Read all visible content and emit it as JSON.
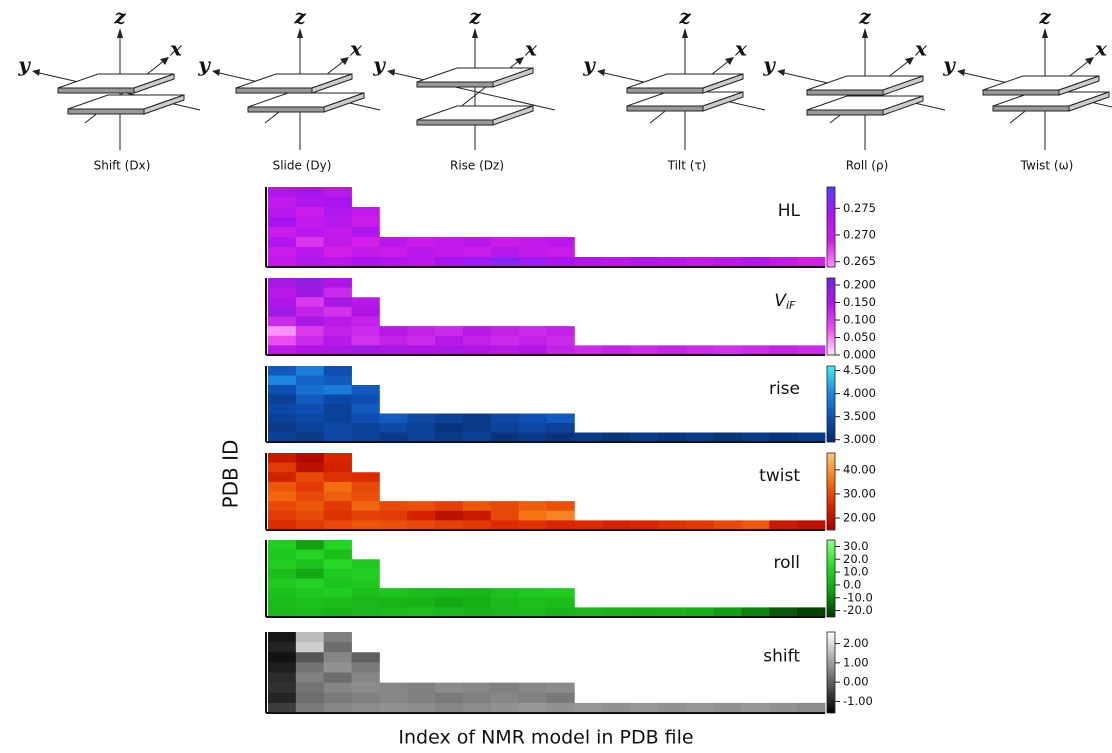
{
  "diagrams": [
    {
      "label": "Shift (Dx)"
    },
    {
      "label": "Slide (Dy)"
    },
    {
      "label": "Rise (Dz)"
    },
    {
      "label": "Tilt (τ)"
    },
    {
      "label": "Roll (ρ)"
    },
    {
      "label": "Twist (ω)"
    }
  ],
  "axis_letters": [
    "z",
    "y",
    "x"
  ],
  "figure": {
    "ylabel": "PDB ID",
    "xlabel": "Index of NMR model in PDB file"
  },
  "chart_data": [
    {
      "type": "heatmap",
      "label": "HL",
      "colormap": [
        "#ff8cff",
        "#d21ee6",
        "#a814f0",
        "#5a3cff"
      ],
      "clim": [
        0.264,
        0.279
      ],
      "cticks": [
        0.265,
        {
          "value": 0.27,
          "label": "0.270"
        },
        0.275
      ],
      "rows": [
        [
          0.273,
          0.274,
          0.272
        ],
        [
          0.271,
          0.273,
          0.274
        ],
        [
          0.272,
          0.27,
          0.273,
          0.271
        ],
        [
          0.274,
          0.271,
          0.272,
          0.27
        ],
        [
          0.27,
          0.272,
          0.271,
          0.273
        ],
        [
          0.273,
          0.268,
          0.271,
          0.269,
          0.272,
          0.27,
          0.271,
          0.272,
          0.27,
          0.271,
          0.272
        ],
        [
          0.27,
          0.272,
          0.269,
          0.271,
          0.27,
          0.272,
          0.271,
          0.27,
          0.272,
          0.271,
          0.27
        ],
        [
          0.271,
          0.273,
          0.272,
          0.274,
          0.273,
          0.272,
          0.274,
          0.275,
          0.276,
          0.275,
          0.274,
          0.273,
          0.272,
          0.273,
          0.272,
          0.271,
          0.272,
          0.273,
          0.271,
          0.269
        ]
      ]
    },
    {
      "type": "heatmap",
      "label": "V",
      "label_sub": "iF",
      "colormap": [
        "#ffe6ff",
        "#f050f0",
        "#b414e6",
        "#6e28dc"
      ],
      "clim": [
        0,
        0.22
      ],
      "cticks": [
        {
          "value": 0,
          "label": "0.000"
        },
        {
          "value": 0.05,
          "label": "0.050"
        },
        {
          "value": 0.1,
          "label": "0.100"
        },
        {
          "value": 0.15,
          "label": "0.150"
        },
        {
          "value": 0.2,
          "label": "0.200"
        }
      ],
      "rows": [
        [
          0.16,
          0.18,
          0.15
        ],
        [
          0.14,
          0.17,
          0.12
        ],
        [
          0.15,
          0.1,
          0.16,
          0.14
        ],
        [
          0.17,
          0.13,
          0.11,
          0.15
        ],
        [
          0.12,
          0.16,
          0.14,
          0.13
        ],
        [
          0.04,
          0.1,
          0.13,
          0.12,
          0.14,
          0.13,
          0.12,
          0.14,
          0.13,
          0.12,
          0.13
        ],
        [
          0.08,
          0.12,
          0.14,
          0.11,
          0.13,
          0.12,
          0.14,
          0.13,
          0.12,
          0.13,
          0.12
        ],
        [
          0.14,
          0.15,
          0.16,
          0.17,
          0.16,
          0.15,
          0.16,
          0.15,
          0.14,
          0.15,
          0.13,
          0.12,
          0.13,
          0.12,
          0.13,
          0.12,
          0.11,
          0.12,
          0.13,
          0.12
        ]
      ]
    },
    {
      "type": "heatmap",
      "label": "rise",
      "colormap": [
        "#082868",
        "#0f4fb4",
        "#1e8ce6",
        "#46f0f0"
      ],
      "clim": [
        2.95,
        4.6
      ],
      "cticks": [
        {
          "value": 3,
          "label": "3.000"
        },
        {
          "value": 3.5,
          "label": "3.500"
        },
        {
          "value": 4,
          "label": "4.000"
        },
        {
          "value": 4.5,
          "label": "4.500"
        }
      ],
      "rows": [
        [
          3.6,
          3.9,
          3.5
        ],
        [
          4.0,
          3.7,
          3.6
        ],
        [
          3.5,
          3.8,
          3.9,
          3.6
        ],
        [
          3.3,
          3.6,
          3.4,
          3.5
        ],
        [
          3.4,
          3.5,
          3.3,
          3.6
        ],
        [
          3.3,
          3.4,
          3.3,
          3.5,
          3.6,
          3.4,
          3.3,
          3.2,
          3.4,
          3.5,
          3.6
        ],
        [
          3.2,
          3.3,
          3.4,
          3.3,
          3.4,
          3.3,
          3.1,
          3.2,
          3.3,
          3.4,
          3.3
        ],
        [
          3.3,
          3.2,
          3.4,
          3.3,
          3.2,
          3.3,
          3.2,
          3.3,
          3.1,
          3.2,
          3.1,
          3.2,
          3.1,
          3.2,
          3.1,
          3.2,
          3.1,
          3.2,
          3.1,
          3.2
        ]
      ]
    },
    {
      "type": "heatmap",
      "label": "twist",
      "colormap": [
        "#a00000",
        "#dc2800",
        "#f57814",
        "#ffc878"
      ],
      "clim": [
        15,
        47
      ],
      "cticks": [
        {
          "value": 20,
          "label": "20.00"
        },
        {
          "value": 30,
          "label": "30.00"
        },
        {
          "value": 40,
          "label": "40.00"
        }
      ],
      "rows": [
        [
          22,
          18,
          25
        ],
        [
          28,
          20,
          24
        ],
        [
          24,
          30,
          27,
          26
        ],
        [
          32,
          28,
          35,
          30
        ],
        [
          34,
          30,
          33,
          31
        ],
        [
          30,
          32,
          28,
          34,
          30,
          31,
          29,
          32,
          30,
          33,
          31
        ],
        [
          28,
          30,
          27,
          29,
          28,
          24,
          20,
          22,
          30,
          36,
          38
        ],
        [
          26,
          28,
          30,
          32,
          31,
          30,
          29,
          28,
          26,
          27,
          25,
          26,
          24,
          25,
          27,
          28,
          30,
          32,
          22,
          20
        ]
      ]
    },
    {
      "type": "heatmap",
      "label": "roll",
      "colormap": [
        "#003200",
        "#10a010",
        "#28dc28",
        "#8cff8c"
      ],
      "clim": [
        -25,
        35
      ],
      "cticks": [
        {
          "value": -20,
          "label": "-20.0"
        },
        {
          "value": -10,
          "label": "-10.0"
        },
        {
          "value": 0,
          "label": "0.0"
        },
        {
          "value": 10,
          "label": "10.0"
        },
        {
          "value": 20,
          "label": "20.0"
        },
        {
          "value": 30,
          "label": "30.0"
        }
      ],
      "rows": [
        [
          10,
          -5,
          12
        ],
        [
          8,
          12,
          5
        ],
        [
          10,
          6,
          14,
          9
        ],
        [
          5,
          -2,
          8,
          10
        ],
        [
          9,
          11,
          7,
          8
        ],
        [
          6,
          8,
          10,
          5,
          7,
          4,
          3,
          2,
          6,
          8,
          9
        ],
        [
          4,
          6,
          5,
          3,
          2,
          1,
          -2,
          0,
          3,
          5,
          4
        ],
        [
          3,
          4,
          2,
          3,
          4,
          5,
          3,
          2,
          3,
          4,
          2,
          3,
          2,
          1,
          2,
          0,
          -5,
          -10,
          -18,
          -22
        ]
      ]
    },
    {
      "type": "heatmap",
      "label": "shift",
      "colormap": [
        "#000000",
        "#ffffff"
      ],
      "clim": [
        -1.6,
        2.6
      ],
      "cticks": [
        {
          "value": -1,
          "label": "-1.00"
        },
        {
          "value": 0,
          "label": "0.00"
        },
        {
          "value": 1,
          "label": "1.00"
        },
        {
          "value": 2,
          "label": "2.00"
        }
      ],
      "rows": [
        [
          -1.2,
          1.5,
          0.5
        ],
        [
          -1.0,
          1.8,
          0.2
        ],
        [
          -1.3,
          -0.2,
          0.6,
          0.0
        ],
        [
          -1.1,
          0.3,
          0.8,
          0.4
        ],
        [
          -0.9,
          0.5,
          0.2,
          0.6
        ],
        [
          -0.8,
          0.3,
          0.6,
          0.7,
          0.6,
          0.5,
          0.7,
          0.6,
          0.5,
          0.6,
          0.7
        ],
        [
          -1.0,
          0.2,
          0.4,
          0.5,
          0.6,
          0.5,
          0.4,
          0.5,
          0.6,
          0.5,
          0.4
        ],
        [
          -0.6,
          0.4,
          0.6,
          0.7,
          0.8,
          0.7,
          0.6,
          0.7,
          0.8,
          0.9,
          0.8,
          0.9,
          0.8,
          0.9,
          0.8,
          0.9,
          0.8,
          0.9,
          0.8,
          0.7
        ]
      ]
    }
  ]
}
